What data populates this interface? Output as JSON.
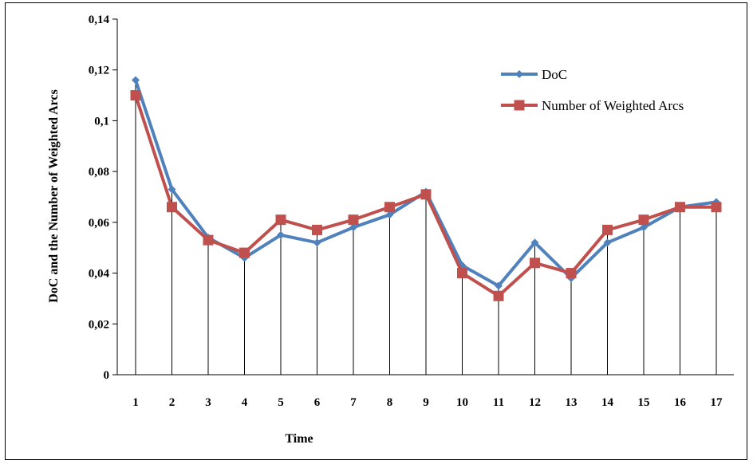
{
  "chart_data": {
    "type": "line",
    "title": "",
    "xlabel": "Time",
    "ylabel": "DoC and the Number of Weighted Arcs",
    "categories": [
      "1",
      "2",
      "3",
      "4",
      "5",
      "6",
      "7",
      "8",
      "9",
      "10",
      "11",
      "12",
      "13",
      "14",
      "15",
      "16",
      "17"
    ],
    "y_ticks": [
      "0",
      "0,02",
      "0,04",
      "0,06",
      "0,08",
      "0,1",
      "0,12",
      "0,14"
    ],
    "ylim": [
      0,
      0.14
    ],
    "grid": false,
    "drop_lines": true,
    "legend_position": "top-right",
    "series": [
      {
        "name": "DoC",
        "color": "#4F81BD",
        "marker": "diamond",
        "values": [
          0.116,
          0.073,
          0.054,
          0.046,
          0.055,
          0.052,
          0.058,
          0.063,
          0.072,
          0.043,
          0.035,
          0.052,
          0.038,
          0.052,
          0.058,
          0.066,
          0.068
        ]
      },
      {
        "name": "Number of Weighted Arcs",
        "color": "#C0504D",
        "marker": "square",
        "values": [
          0.11,
          0.066,
          0.053,
          0.048,
          0.061,
          0.057,
          0.061,
          0.066,
          0.071,
          0.04,
          0.031,
          0.044,
          0.04,
          0.057,
          0.061,
          0.066,
          0.066
        ]
      }
    ]
  }
}
